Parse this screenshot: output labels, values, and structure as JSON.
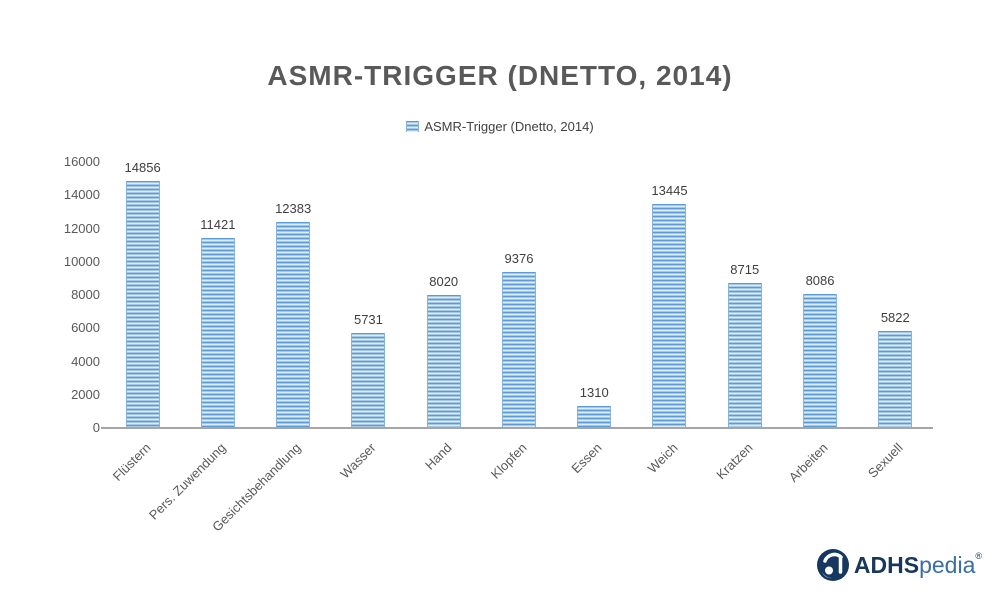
{
  "chart_data": {
    "type": "bar",
    "title": "ASMR-TRIGGER (DNETTO, 2014)",
    "legend": [
      "ASMR-Trigger (Dnetto, 2014)"
    ],
    "legend_position": "top",
    "categories": [
      "Flüstern",
      "Pers. Zuwendung",
      "Gesichtsbehandlung",
      "Wasser",
      "Hand",
      "Klopfen",
      "Essen",
      "Weich",
      "Kratzen",
      "Arbeiten",
      "Sexuell"
    ],
    "values": [
      14856,
      11421,
      12383,
      5731,
      8020,
      9376,
      1310,
      13445,
      8715,
      8086,
      5822
    ],
    "xlabel": "",
    "ylabel": "",
    "ylim": [
      0,
      16000
    ],
    "y_tick_step": 2000,
    "grid": false,
    "bar_color": "#5b9bd5",
    "bar_color_light": "#ddebf7",
    "axis_line_color": "#a6a6a6",
    "title_color": "#595959"
  },
  "branding": {
    "name": "ADHSpedia",
    "bold_part": "ADHS",
    "light_part": "pedia",
    "registered_mark": "®"
  }
}
